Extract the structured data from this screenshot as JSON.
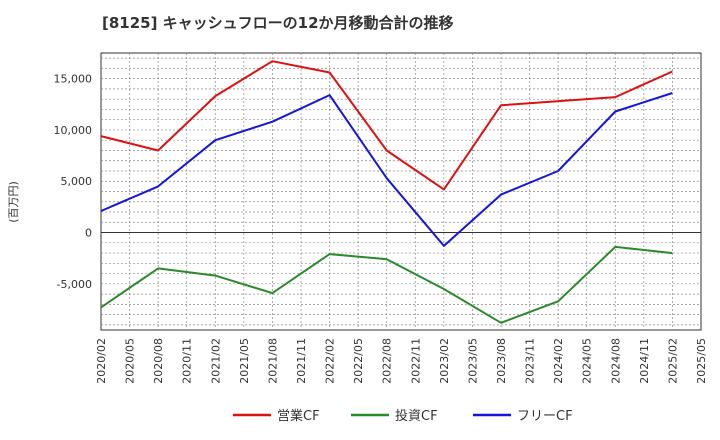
{
  "chart_data": {
    "type": "line",
    "title": "[8125]  キャッシュフローの12か月移動合計の推移",
    "ylabel": "(百万円)",
    "xlabel": "",
    "ylim": [
      -9500,
      17500
    ],
    "yticks": [
      -5000,
      0,
      5000,
      10000,
      15000
    ],
    "ytick_labels": [
      "-5,000",
      "0",
      "5,000",
      "10,000",
      "15,000"
    ],
    "categories": [
      "2020/02",
      "2020/05",
      "2020/08",
      "2020/11",
      "2021/02",
      "2021/05",
      "2021/08",
      "2021/11",
      "2022/02",
      "2022/05",
      "2022/08",
      "2022/11",
      "2023/02",
      "2023/05",
      "2023/08",
      "2023/11",
      "2024/02",
      "2024/05",
      "2024/08",
      "2024/11",
      "2025/02",
      "2025/05"
    ],
    "grid": true,
    "legend_position": "bottom",
    "series": [
      {
        "name": "営業CF",
        "color": "#dd1111",
        "values": [
          9400,
          null,
          8000,
          null,
          13300,
          null,
          16700,
          null,
          15600,
          null,
          8000,
          null,
          4200,
          null,
          12400,
          null,
          null,
          null,
          13200,
          null,
          15700,
          null
        ]
      },
      {
        "name": "投資CF",
        "color": "#2a8a2a",
        "values": [
          -7300,
          null,
          -3500,
          null,
          -4200,
          null,
          -5900,
          null,
          -2100,
          null,
          -2600,
          null,
          -5500,
          null,
          -8800,
          null,
          -6700,
          null,
          -1400,
          null,
          -2000,
          null
        ]
      },
      {
        "name": "フリーCF",
        "color": "#1515dd",
        "values": [
          2100,
          null,
          4500,
          null,
          9000,
          null,
          10800,
          null,
          13400,
          null,
          5300,
          null,
          -1300,
          null,
          3700,
          null,
          6000,
          null,
          11800,
          null,
          13600,
          null
        ]
      }
    ]
  }
}
